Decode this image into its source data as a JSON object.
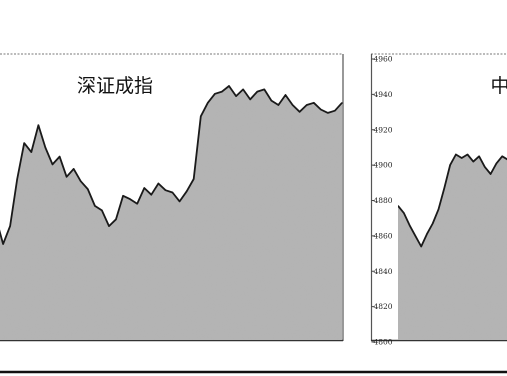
{
  "chart_data": [
    {
      "type": "area",
      "title": "深证成指",
      "xlabel": "",
      "ylabel": "",
      "fill_texture": "grey stipple",
      "y": [
        10835,
        10812,
        10828,
        10870,
        10902,
        10894,
        10918,
        10898,
        10883,
        10890,
        10872,
        10879,
        10868,
        10861,
        10846,
        10842,
        10828,
        10834,
        10855,
        10852,
        10848,
        10862,
        10856,
        10866,
        10860,
        10858,
        10850,
        10859,
        10870,
        10926,
        10938,
        10946,
        10948,
        10953,
        10944,
        10950,
        10941,
        10948,
        10950,
        10940,
        10936,
        10945,
        10936,
        10930,
        10936,
        10938,
        10932,
        10929,
        10931,
        10938
      ]
    },
    {
      "type": "area",
      "title": "中",
      "xlabel": "",
      "ylabel": "",
      "ylim": [
        4800,
        4960
      ],
      "yticks": [
        "4960",
        "4940",
        "4920",
        "4900",
        "4880",
        "4860",
        "4840",
        "4820",
        "4800"
      ],
      "fill_texture": "grey stipple",
      "y": [
        4877,
        4873,
        4866,
        4860,
        4854,
        4861,
        4867,
        4875,
        4887,
        4900,
        4906,
        4904,
        4906,
        4902,
        4905,
        4899,
        4895,
        4901,
        4905,
        4903
      ]
    }
  ]
}
